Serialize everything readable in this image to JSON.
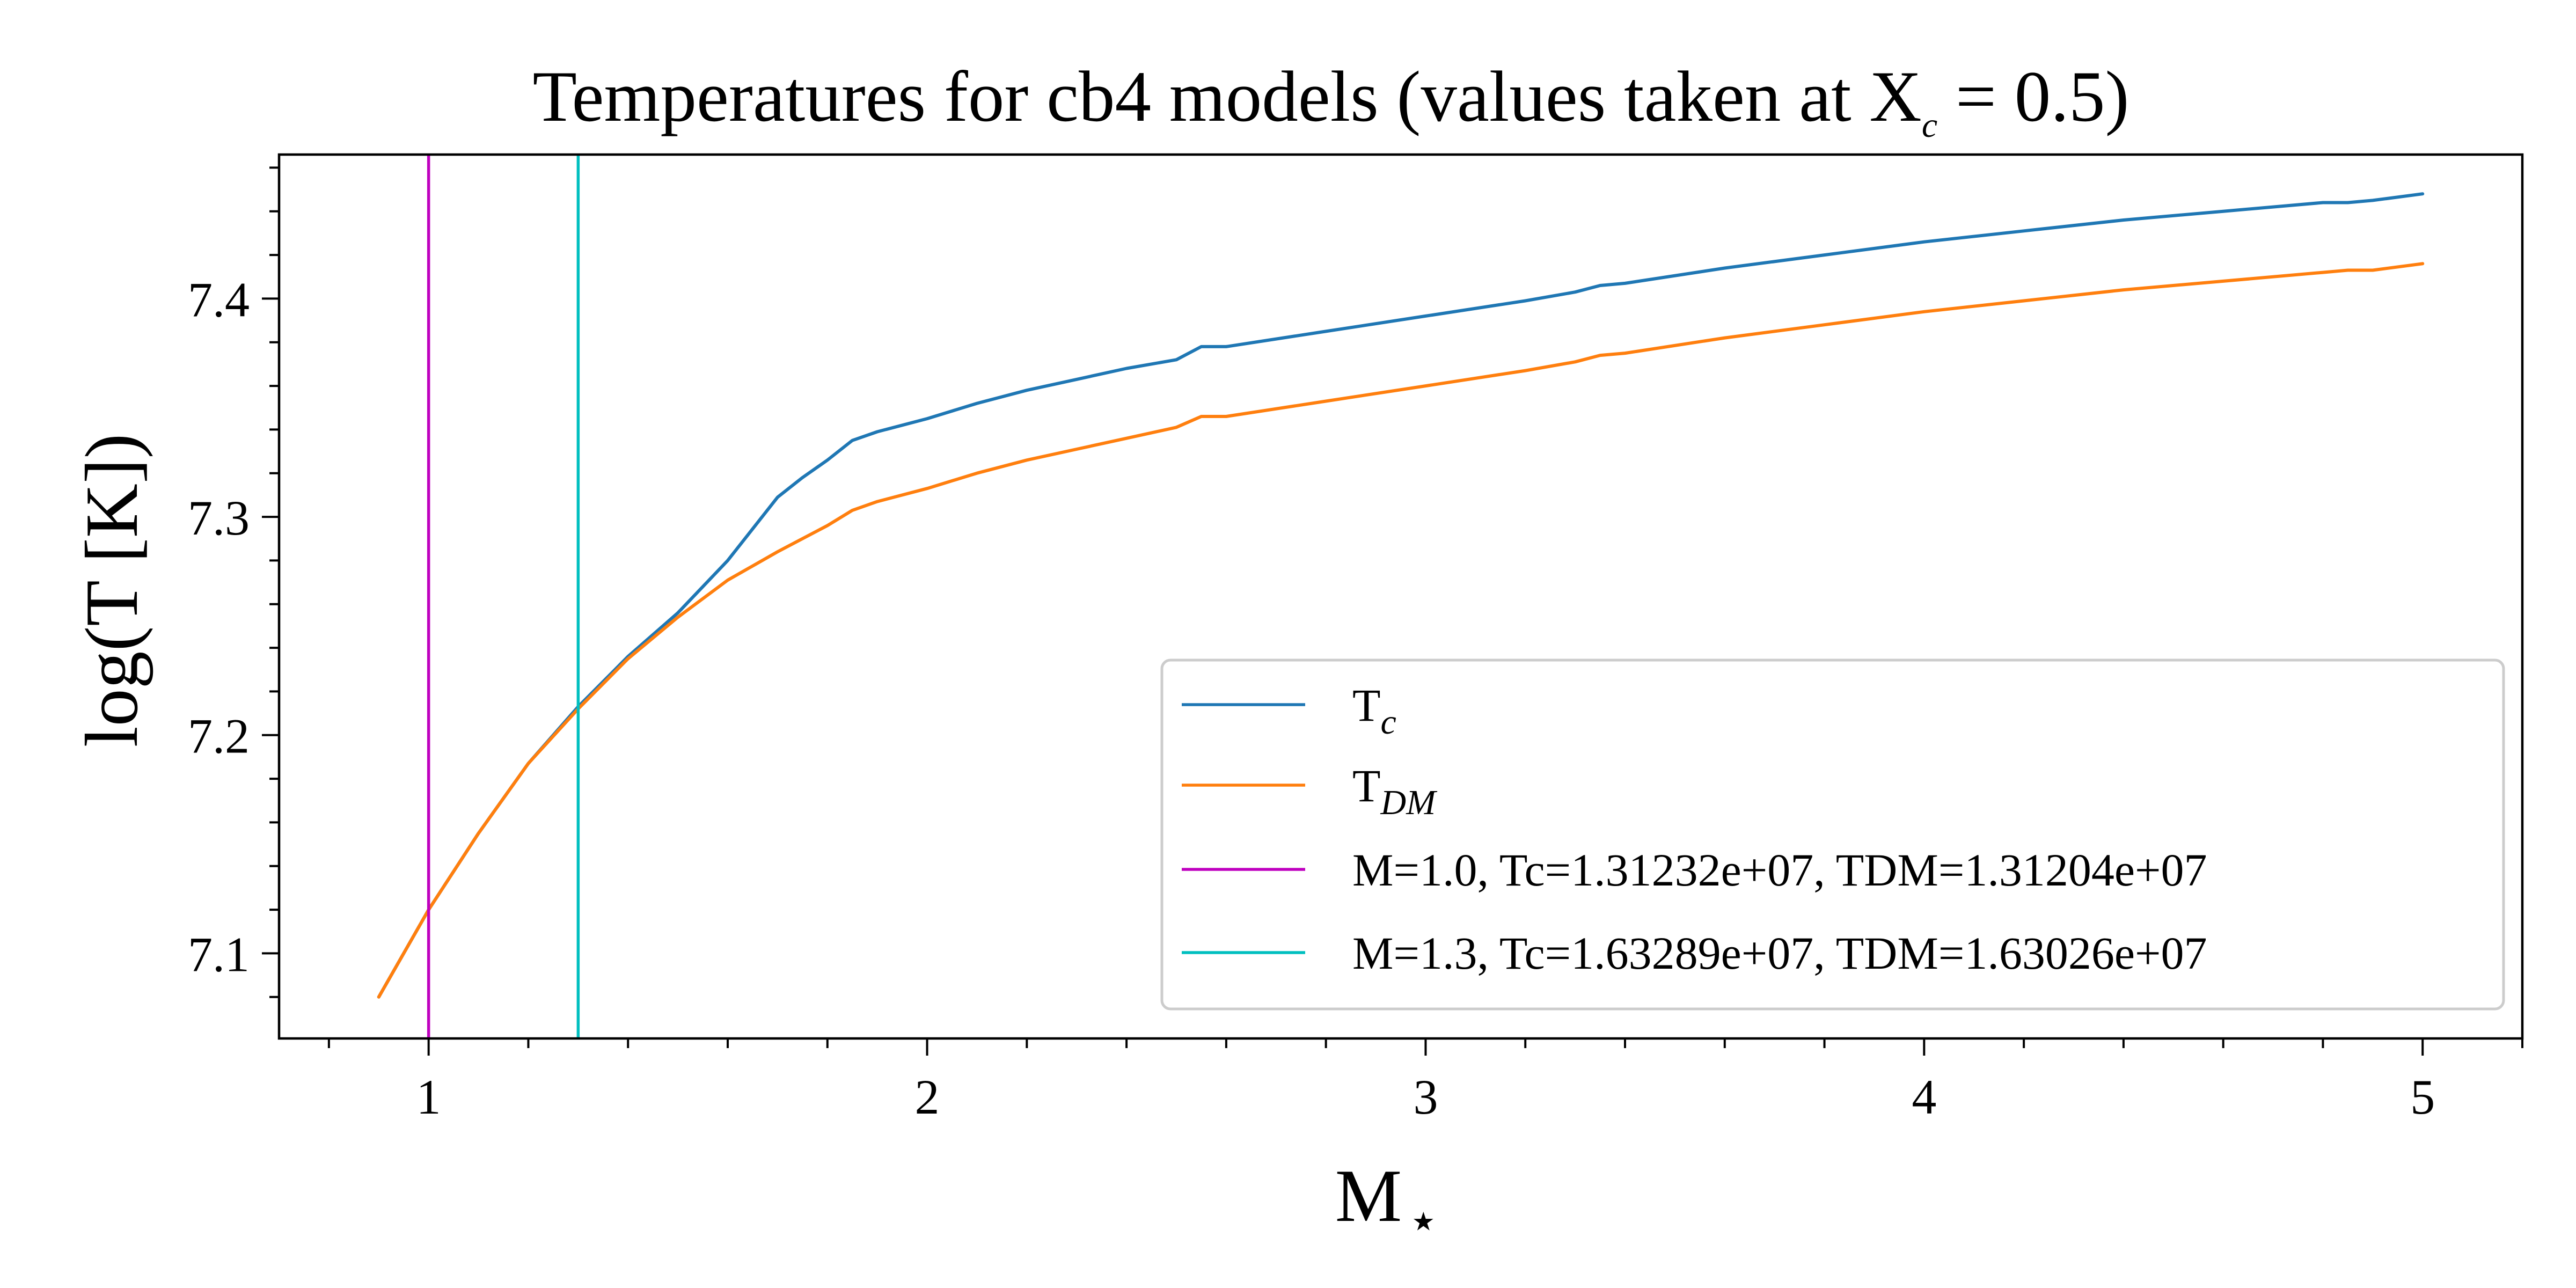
{
  "chart_data": {
    "type": "line",
    "title": {
      "main": "Temperatures for cb4 models (values taken at X",
      "sub": "c",
      "tail": " = 0.5)"
    },
    "xlabel": {
      "main": "M",
      "sub": "⋆"
    },
    "ylabel": "log(T [K])",
    "xlim": [
      0.7,
      5.2
    ],
    "ylim": [
      7.061,
      7.466
    ],
    "x_major_ticks": [
      1,
      2,
      3,
      4,
      5
    ],
    "x_tick_labels": [
      "1",
      "2",
      "3",
      "4",
      "5"
    ],
    "x_minor_step": 0.2,
    "y_major_ticks": [
      7.1,
      7.2,
      7.3,
      7.4
    ],
    "y_tick_labels": [
      "7.1",
      "7.2",
      "7.3",
      "7.4"
    ],
    "y_minor_step": 0.02,
    "grid": false,
    "legend_position": "lower right",
    "series": [
      {
        "name": "T",
        "name_sub": "c",
        "color": "#1f77b4",
        "x": [
          0.9,
          1.0,
          1.1,
          1.2,
          1.3,
          1.4,
          1.5,
          1.6,
          1.7,
          1.75,
          1.8,
          1.85,
          1.9,
          2.0,
          2.1,
          2.2,
          2.3,
          2.4,
          2.5,
          2.55,
          2.6,
          2.8,
          3.0,
          3.2,
          3.3,
          3.35,
          3.4,
          3.6,
          3.8,
          4.0,
          4.2,
          4.4,
          4.6,
          4.8,
          4.85,
          4.9,
          5.0
        ],
        "y": [
          7.08,
          7.12,
          7.155,
          7.187,
          7.213,
          7.236,
          7.256,
          7.28,
          7.309,
          7.318,
          7.326,
          7.335,
          7.339,
          7.345,
          7.352,
          7.358,
          7.363,
          7.368,
          7.372,
          7.378,
          7.378,
          7.385,
          7.392,
          7.399,
          7.403,
          7.406,
          7.407,
          7.414,
          7.42,
          7.426,
          7.431,
          7.436,
          7.44,
          7.444,
          7.444,
          7.445,
          7.448
        ]
      },
      {
        "name": "T",
        "name_sub": "DM",
        "color": "#ff7f0e",
        "x": [
          0.9,
          1.0,
          1.1,
          1.2,
          1.3,
          1.4,
          1.5,
          1.6,
          1.7,
          1.8,
          1.85,
          1.9,
          2.0,
          2.1,
          2.2,
          2.3,
          2.4,
          2.5,
          2.55,
          2.6,
          2.8,
          3.0,
          3.2,
          3.3,
          3.35,
          3.4,
          3.6,
          3.8,
          4.0,
          4.2,
          4.4,
          4.6,
          4.8,
          4.85,
          4.9,
          5.0
        ],
        "y": [
          7.08,
          7.12,
          7.155,
          7.187,
          7.212,
          7.235,
          7.254,
          7.271,
          7.284,
          7.296,
          7.303,
          7.307,
          7.313,
          7.32,
          7.326,
          7.331,
          7.336,
          7.341,
          7.346,
          7.346,
          7.353,
          7.36,
          7.367,
          7.371,
          7.374,
          7.375,
          7.382,
          7.388,
          7.394,
          7.399,
          7.404,
          7.408,
          7.412,
          7.413,
          7.413,
          7.416
        ]
      },
      {
        "name": "M=1.0, Tc=1.31232e+07, TDM=1.31204e+07",
        "color": "#bf00bf",
        "vline_x": 1.0
      },
      {
        "name": "M=1.3, Tc=1.63289e+07, TDM=1.63026e+07",
        "color": "#00bfbf",
        "vline_x": 1.3
      }
    ]
  }
}
